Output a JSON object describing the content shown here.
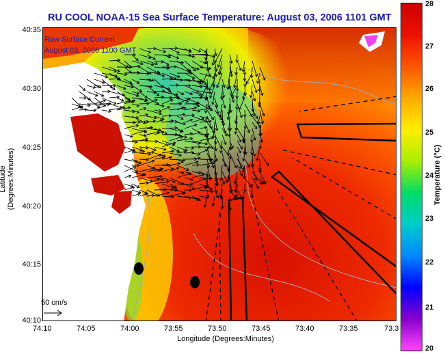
{
  "header": {
    "title": "RU COOL  NOAA-15  Sea Surface Temperature:  August 03, 2006 1101 GMT"
  },
  "overlay": {
    "line1": "Raw Surface Current",
    "line2": "August 03, 2006 1100 GMT"
  },
  "axes": {
    "xlabel": "Longitude (Degrees:Minutes)",
    "ylabel": "Latitude (Degrees:Minutes)",
    "xticks": [
      "74:10",
      "74:05",
      "74:00",
      "73:55",
      "73:50",
      "73:45",
      "73:40",
      "73:35",
      "73:3"
    ],
    "yticks": [
      "40:35",
      "40:30",
      "40:25",
      "40:20",
      "40:15",
      "40:10"
    ]
  },
  "scale": {
    "label": "50 cm/s"
  },
  "colorbar": {
    "label": "Temperature (°C)",
    "ticks": [
      "28",
      "27",
      "26",
      "25",
      "24",
      "23",
      "22",
      "21",
      "20"
    ],
    "min": 20,
    "max": 28,
    "colors": [
      "#ff44ff",
      "#8800cc",
      "#0000ff",
      "#0088ff",
      "#00cccc",
      "#00dd66",
      "#aaee00",
      "#ffee00",
      "#ffaa00",
      "#ff5500",
      "#ee1100",
      "#cc0000"
    ]
  }
}
